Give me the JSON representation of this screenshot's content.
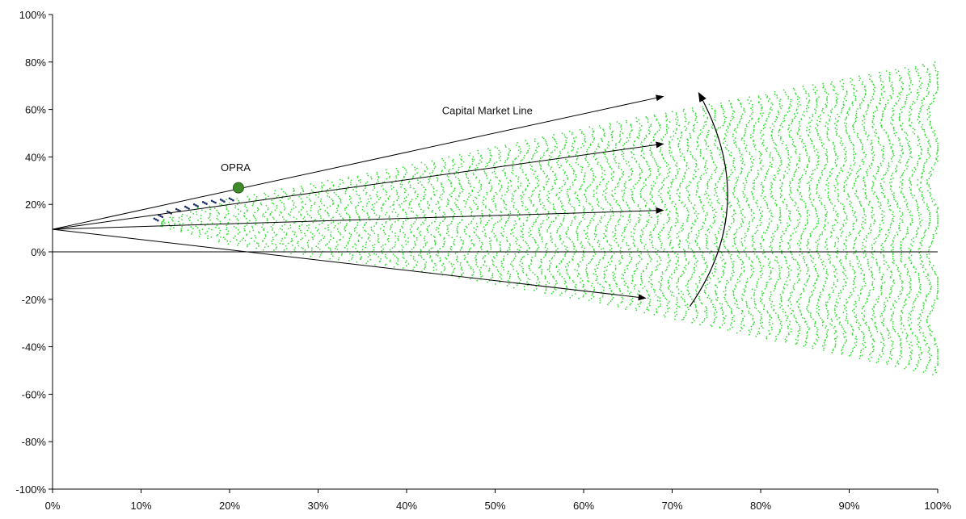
{
  "chart_data": {
    "type": "scatter",
    "title": "",
    "xlabel": "",
    "ylabel": "",
    "xlim": [
      0,
      1
    ],
    "ylim": [
      -1,
      1
    ],
    "x_ticks": [
      {
        "value": 0.0,
        "label": "0%"
      },
      {
        "value": 0.1,
        "label": "10%"
      },
      {
        "value": 0.2,
        "label": "20%"
      },
      {
        "value": 0.3,
        "label": "30%"
      },
      {
        "value": 0.4,
        "label": "40%"
      },
      {
        "value": 0.5,
        "label": "50%"
      },
      {
        "value": 0.6,
        "label": "60%"
      },
      {
        "value": 0.7,
        "label": "70%"
      },
      {
        "value": 0.8,
        "label": "80%"
      },
      {
        "value": 0.9,
        "label": "90%"
      },
      {
        "value": 1.0,
        "label": "100%"
      }
    ],
    "y_ticks": [
      {
        "value": 1.0,
        "label": "100%"
      },
      {
        "value": 0.8,
        "label": "80%"
      },
      {
        "value": 0.6,
        "label": "60%"
      },
      {
        "value": 0.4,
        "label": "40%"
      },
      {
        "value": 0.2,
        "label": "20%"
      },
      {
        "value": 0.0,
        "label": "0%"
      },
      {
        "value": -0.2,
        "label": "-20%"
      },
      {
        "value": -0.4,
        "label": "-40%"
      },
      {
        "value": -0.6,
        "label": "-60%"
      },
      {
        "value": -0.8,
        "label": "-80%"
      },
      {
        "value": -1.0,
        "label": "-100%"
      }
    ],
    "grid": false,
    "legend": "none",
    "colors": {
      "cloud": "#33dd33",
      "frontier": "#1a2e66",
      "opra": "#3f8a2a",
      "arrow": "#000000",
      "axis": "#000000"
    },
    "series": [
      {
        "kind": "cloud",
        "band": {
          "x_range": [
            0.12,
            1.0
          ],
          "upper": [
            [
              0.12,
              0.13
            ],
            [
              0.2,
              0.22
            ],
            [
              0.4,
              0.36
            ],
            [
              0.6,
              0.52
            ],
            [
              0.8,
              0.66
            ],
            [
              1.0,
              0.8
            ]
          ],
          "lower": [
            [
              0.12,
              0.11
            ],
            [
              0.2,
              0.03
            ],
            [
              0.3,
              -0.02
            ],
            [
              0.4,
              -0.07
            ],
            [
              0.6,
              -0.2
            ],
            [
              0.8,
              -0.36
            ],
            [
              1.0,
              -0.52
            ]
          ]
        }
      },
      {
        "kind": "frontier",
        "points": [
          [
            0.115,
            0.14
          ],
          [
            0.12,
            0.155
          ],
          [
            0.13,
            0.17
          ],
          [
            0.14,
            0.18
          ],
          [
            0.15,
            0.19
          ],
          [
            0.16,
            0.2
          ],
          [
            0.17,
            0.21
          ],
          [
            0.18,
            0.215
          ],
          [
            0.19,
            0.22
          ],
          [
            0.2,
            0.225
          ]
        ]
      }
    ],
    "opra_point": {
      "x": 0.21,
      "y": 0.27
    },
    "rays": [
      {
        "from": [
          0.0,
          0.095
        ],
        "to": [
          0.69,
          0.655
        ]
      },
      {
        "from": [
          0.0,
          0.095
        ],
        "to": [
          0.69,
          0.455
        ]
      },
      {
        "from": [
          0.0,
          0.095
        ],
        "to": [
          0.69,
          0.175
        ]
      },
      {
        "from": [
          0.0,
          0.095
        ],
        "to": [
          0.67,
          -0.195
        ]
      }
    ],
    "curved_arrow": {
      "from": [
        0.72,
        -0.23
      ],
      "control": [
        0.8,
        0.2
      ],
      "to": [
        0.73,
        0.67
      ]
    },
    "annotations": [
      {
        "text": "Capital Market Line",
        "x": 0.44,
        "y": 0.58
      },
      {
        "text": "OPRA",
        "x": 0.19,
        "y": 0.34
      }
    ]
  }
}
